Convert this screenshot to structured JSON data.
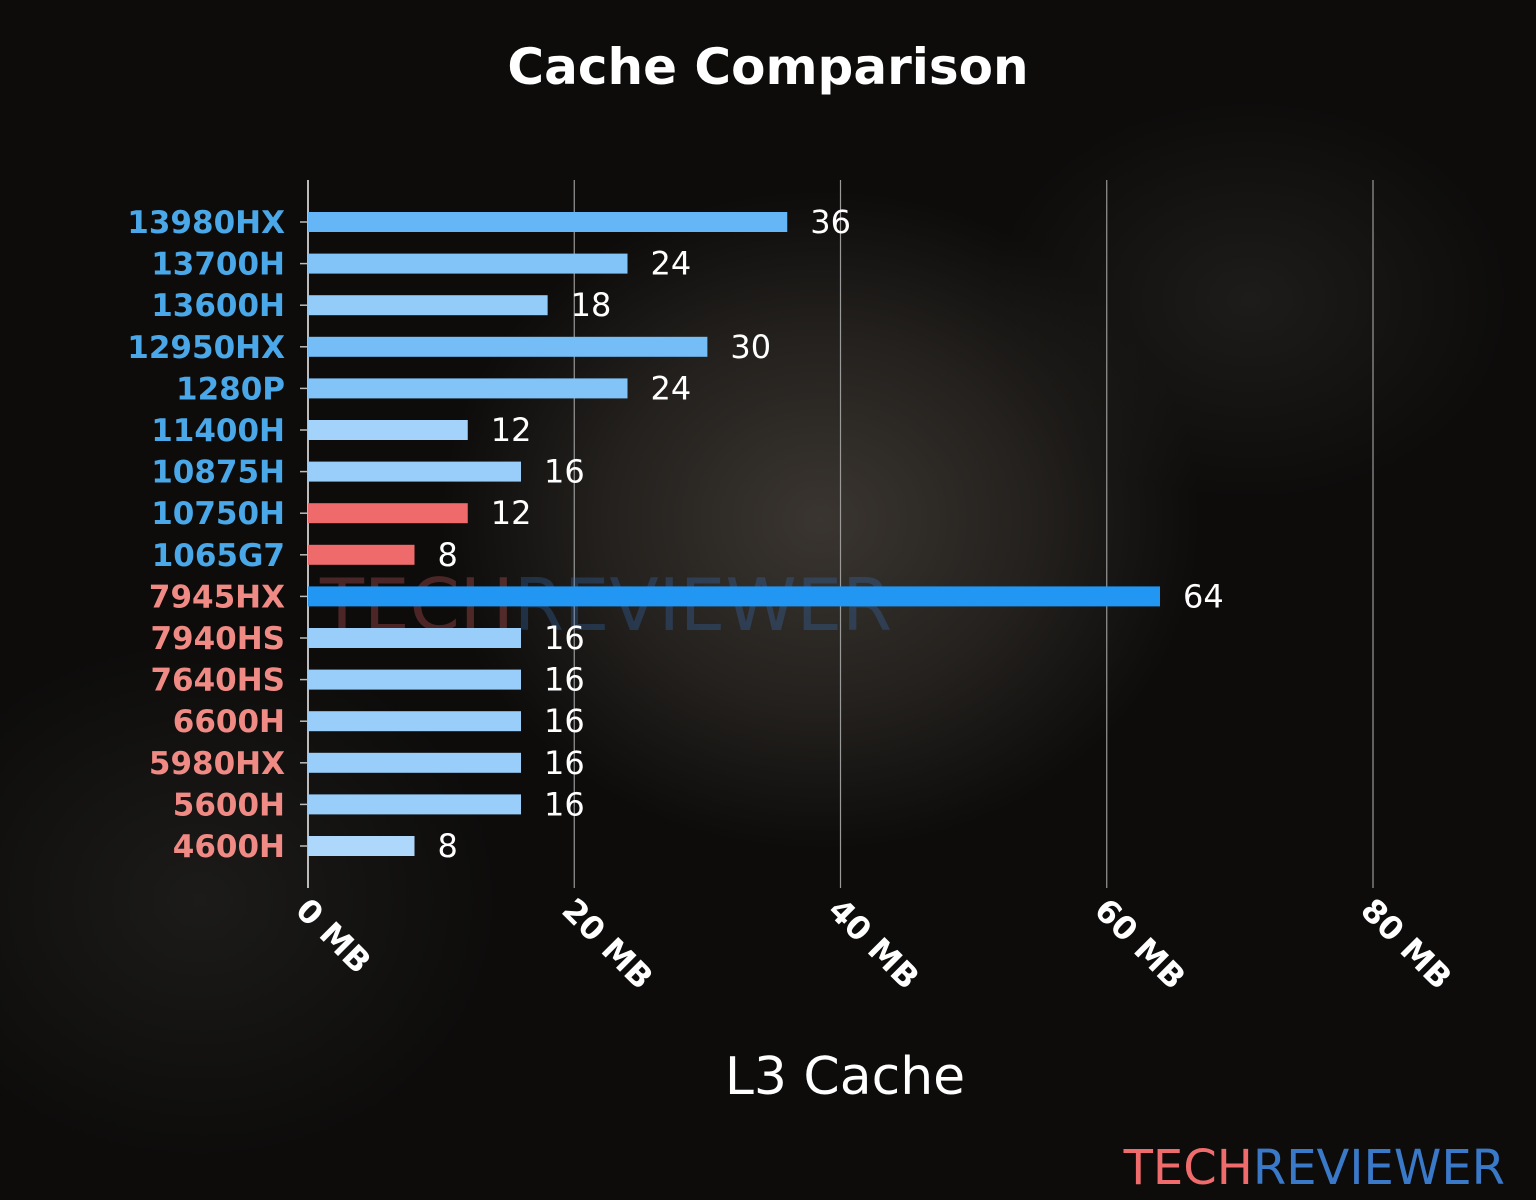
{
  "chart_data": {
    "type": "bar",
    "orientation": "horizontal",
    "title": "Cache Comparison",
    "xlabel": "L3 Cache",
    "ylabel": "",
    "xlim": [
      0,
      80
    ],
    "xticks": [
      "0 MB",
      "20 MB",
      "40 MB",
      "60 MB",
      "80 MB"
    ],
    "grid": true,
    "categories": [
      "13980HX",
      "13700H",
      "13600H",
      "12950HX",
      "1280P",
      "11400H",
      "10875H",
      "10750H",
      "1065G7",
      "7945HX",
      "7940HS",
      "7640HS",
      "6600H",
      "5980HX",
      "5600H",
      "4600H"
    ],
    "values": [
      36,
      24,
      18,
      30,
      24,
      12,
      16,
      12,
      8,
      64,
      16,
      16,
      16,
      16,
      16,
      8
    ],
    "label_colors": [
      "#4aa8e8",
      "#4aa8e8",
      "#4aa8e8",
      "#4aa8e8",
      "#4aa8e8",
      "#4aa8e8",
      "#4aa8e8",
      "#4aa8e8",
      "#4aa8e8",
      "#f08a84",
      "#f08a84",
      "#f08a84",
      "#f08a84",
      "#f08a84",
      "#f08a84",
      "#f08a84"
    ],
    "highlighted": [
      "10750H",
      "1065G7"
    ],
    "highlight_color": "#ef6b6b"
  },
  "watermark": {
    "part1": "TECH",
    "part2": "REVIEWER",
    "color1": "#f06b6b",
    "color2": "#3a78c8"
  }
}
